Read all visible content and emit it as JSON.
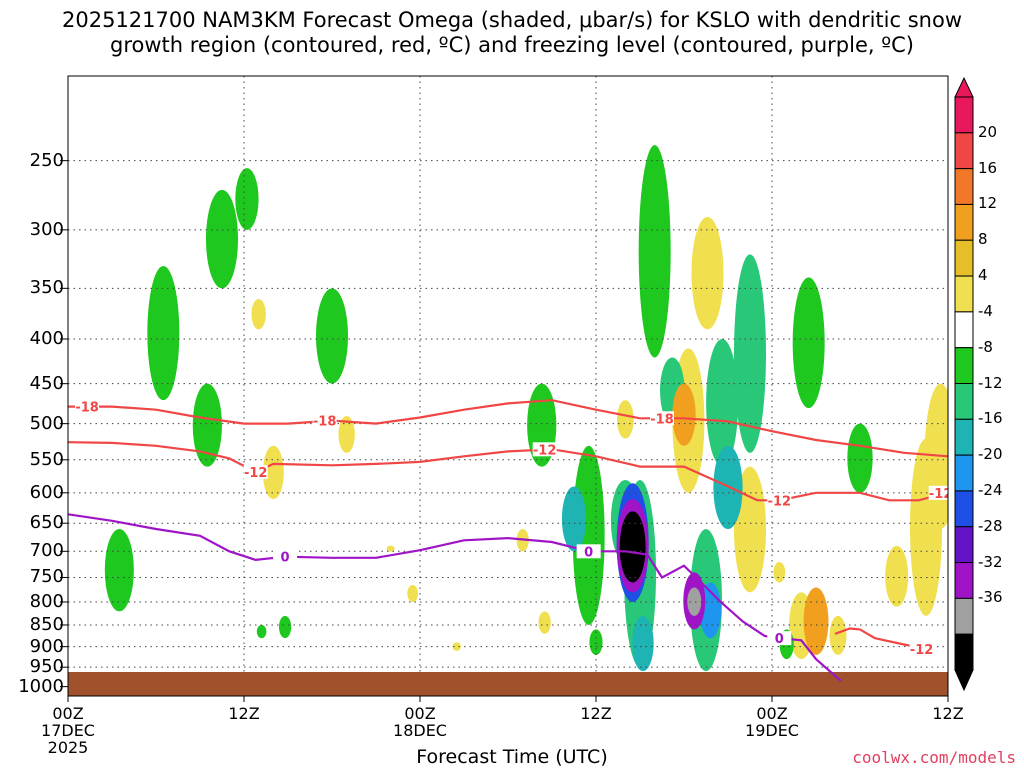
{
  "title_line1": "2025121700 NAM3KM Forecast Omega (shaded, μbar/s) for KSLO with dendritic snow",
  "title_line2": "growth region (contoured, red, ºC) and freezing level (contoured, purple, ºC)",
  "credit": "coolwx.com/models",
  "chart_data": {
    "type": "heatmap",
    "title": "2025121700 NAM3KM Forecast Omega (shaded, μbar/s) for KSLO with dendritic snow growth region (contoured, red, ºC) and freezing level (contoured, purple, ºC)",
    "xlabel": "Forecast Time (UTC)",
    "ylabel": "",
    "xlim": [
      0,
      60
    ],
    "ylim": [
      1025,
      200
    ],
    "y_scale": "log-pressure",
    "grid": true,
    "x_ticks": [
      {
        "hour": 0,
        "label": "00Z",
        "label2": "17DEC",
        "label3": "2025"
      },
      {
        "hour": 12,
        "label": "12Z",
        "label2": "",
        "label3": ""
      },
      {
        "hour": 24,
        "label": "00Z",
        "label2": "18DEC",
        "label3": ""
      },
      {
        "hour": 36,
        "label": "12Z",
        "label2": "",
        "label3": ""
      },
      {
        "hour": 48,
        "label": "00Z",
        "label2": "19DEC",
        "label3": ""
      },
      {
        "hour": 60,
        "label": "12Z",
        "label2": "",
        "label3": ""
      }
    ],
    "y_ticks": [
      250,
      300,
      350,
      400,
      450,
      500,
      550,
      600,
      650,
      700,
      750,
      800,
      850,
      900,
      950,
      1000
    ],
    "colorbar": {
      "labels": [
        "20",
        "16",
        "12",
        "8",
        "4",
        "-4",
        "-8",
        "-12",
        "-16",
        "-20",
        "-24",
        "-28",
        "-32",
        "-36"
      ],
      "colors": [
        "#e8185a",
        "#f04646",
        "#f07828",
        "#f0a01e",
        "#e6be28",
        "#f0e050",
        "#ffffff",
        "#1ec81e",
        "#28c878",
        "#1eb4b4",
        "#1e96f0",
        "#1e50e6",
        "#6414c8",
        "#a014c8",
        "#a0a0a0",
        "#000000"
      ]
    },
    "omega_regions": [
      {
        "hour": 6.5,
        "p_top": 330,
        "p_bot": 470,
        "value": -6
      },
      {
        "hour": 10.5,
        "p_top": 270,
        "p_bot": 350,
        "value": -6
      },
      {
        "hour": 12.2,
        "p_top": 255,
        "p_bot": 300,
        "value": -6
      },
      {
        "hour": 9.5,
        "p_top": 450,
        "p_bot": 560,
        "value": -6
      },
      {
        "hour": 3.5,
        "p_top": 660,
        "p_bot": 820,
        "value": -6
      },
      {
        "hour": 18,
        "p_top": 350,
        "p_bot": 450,
        "value": -6
      },
      {
        "hour": 13.2,
        "p_top": 850,
        "p_bot": 880,
        "value": -6
      },
      {
        "hour": 14.8,
        "p_top": 830,
        "p_bot": 880,
        "value": -6
      },
      {
        "hour": 32.3,
        "p_top": 450,
        "p_bot": 560,
        "value": -6
      },
      {
        "hour": 35.5,
        "p_top": 530,
        "p_bot": 850,
        "value": -6
      },
      {
        "hour": 34.5,
        "p_top": 590,
        "p_bot": 700,
        "value": -12
      },
      {
        "hour": 40,
        "p_top": 240,
        "p_bot": 420,
        "value": -6
      },
      {
        "hour": 41.2,
        "p_top": 420,
        "p_bot": 500,
        "value": -10
      },
      {
        "hour": 39,
        "p_top": 580,
        "p_bot": 950,
        "value": -8
      },
      {
        "hour": 39.2,
        "p_top": 830,
        "p_bot": 960,
        "value": -14
      },
      {
        "hour": 38,
        "p_top": 580,
        "p_bot": 720,
        "value": -10
      },
      {
        "hour": 43.5,
        "p_top": 660,
        "p_bot": 960,
        "value": -8
      },
      {
        "hour": 43.8,
        "p_top": 760,
        "p_bot": 880,
        "value": -16
      },
      {
        "hour": 44.6,
        "p_top": 400,
        "p_bot": 560,
        "value": -8
      },
      {
        "hour": 45,
        "p_top": 530,
        "p_bot": 660,
        "value": -12
      },
      {
        "hour": 46.5,
        "p_top": 320,
        "p_bot": 540,
        "value": -8
      },
      {
        "hour": 50.5,
        "p_top": 340,
        "p_bot": 480,
        "value": -6
      },
      {
        "hour": 54,
        "p_top": 500,
        "p_bot": 600,
        "value": -6
      },
      {
        "hour": 49,
        "p_top": 860,
        "p_bot": 930,
        "value": -6
      },
      {
        "hour": 36,
        "p_top": 860,
        "p_bot": 920,
        "value": -6
      },
      {
        "hour": 38.5,
        "p_top": 585,
        "p_bot": 800,
        "value": -22
      },
      {
        "hour": 38.5,
        "p_top": 610,
        "p_bot": 780,
        "value": -30
      },
      {
        "hour": 38.5,
        "p_top": 630,
        "p_bot": 760,
        "value": -38
      },
      {
        "hour": 42.7,
        "p_top": 740,
        "p_bot": 860,
        "value": -28
      },
      {
        "hour": 42.7,
        "p_top": 770,
        "p_bot": 830,
        "value": -32
      },
      {
        "hour": 14,
        "p_top": 530,
        "p_bot": 610,
        "value": 5
      },
      {
        "hour": 13,
        "p_top": 360,
        "p_bot": 390,
        "value": 5
      },
      {
        "hour": 19,
        "p_top": 490,
        "p_bot": 540,
        "value": 5
      },
      {
        "hour": 22,
        "p_top": 690,
        "p_bot": 700,
        "value": 5
      },
      {
        "hour": 23.5,
        "p_top": 765,
        "p_bot": 800,
        "value": 5
      },
      {
        "hour": 26.5,
        "p_top": 890,
        "p_bot": 910,
        "value": 5
      },
      {
        "hour": 31,
        "p_top": 660,
        "p_bot": 700,
        "value": 5
      },
      {
        "hour": 32.5,
        "p_top": 820,
        "p_bot": 870,
        "value": 5
      },
      {
        "hour": 38,
        "p_top": 470,
        "p_bot": 520,
        "value": 5
      },
      {
        "hour": 42.3,
        "p_top": 410,
        "p_bot": 600,
        "value": 6
      },
      {
        "hour": 42,
        "p_top": 450,
        "p_bot": 530,
        "value": 10
      },
      {
        "hour": 43.6,
        "p_top": 290,
        "p_bot": 390,
        "value": 5
      },
      {
        "hour": 46.5,
        "p_top": 560,
        "p_bot": 780,
        "value": 5
      },
      {
        "hour": 48.5,
        "p_top": 720,
        "p_bot": 760,
        "value": 5
      },
      {
        "hour": 50,
        "p_top": 780,
        "p_bot": 930,
        "value": 5
      },
      {
        "hour": 51,
        "p_top": 770,
        "p_bot": 920,
        "value": 10
      },
      {
        "hour": 52.5,
        "p_top": 830,
        "p_bot": 920,
        "value": 5
      },
      {
        "hour": 56.5,
        "p_top": 690,
        "p_bot": 810,
        "value": 5
      },
      {
        "hour": 58.5,
        "p_top": 520,
        "p_bot": 830,
        "value": 5
      },
      {
        "hour": 59.5,
        "p_top": 450,
        "p_bot": 660,
        "value": 5
      }
    ],
    "contours": [
      {
        "name": "dgz_minus18",
        "label": "-18",
        "color": "#f04646",
        "label_hours": [
          1.3,
          17.5,
          40.5
        ],
        "points": [
          [
            0,
            478
          ],
          [
            3,
            478
          ],
          [
            6,
            482
          ],
          [
            9,
            492
          ],
          [
            12,
            500
          ],
          [
            15,
            500
          ],
          [
            18,
            496
          ],
          [
            21,
            500
          ],
          [
            24,
            492
          ],
          [
            27,
            482
          ],
          [
            30,
            474
          ],
          [
            33,
            470
          ],
          [
            36,
            482
          ],
          [
            39,
            493
          ],
          [
            42,
            493
          ],
          [
            45,
            497
          ],
          [
            48,
            510
          ],
          [
            51,
            522
          ],
          [
            54,
            530
          ],
          [
            57,
            540
          ],
          [
            60,
            545
          ]
        ]
      },
      {
        "name": "dgz_minus12",
        "label": "-12",
        "color": "#f04646",
        "label_hours": [
          12.8,
          32.5,
          48.5,
          59.5
        ],
        "points": [
          [
            0,
            525
          ],
          [
            3,
            526
          ],
          [
            6,
            530
          ],
          [
            9,
            538
          ],
          [
            11,
            548
          ],
          [
            12.8,
            568
          ],
          [
            14,
            556
          ],
          [
            18,
            558
          ],
          [
            21,
            556
          ],
          [
            24,
            553
          ],
          [
            27,
            545
          ],
          [
            30,
            538
          ],
          [
            33,
            535
          ],
          [
            36,
            545
          ],
          [
            39,
            560
          ],
          [
            42,
            560
          ],
          [
            45,
            590
          ],
          [
            47,
            612
          ],
          [
            48.5,
            612
          ],
          [
            51,
            600
          ],
          [
            54,
            600
          ],
          [
            56,
            612
          ],
          [
            58,
            612
          ],
          [
            60,
            600
          ]
        ]
      },
      {
        "name": "dgz_minus12_lower",
        "label": "-12",
        "color": "#f04646",
        "label_hours": [
          58.2
        ],
        "points": [
          [
            52.3,
            870
          ],
          [
            53.3,
            858
          ],
          [
            54,
            860
          ],
          [
            55,
            880
          ],
          [
            57,
            895
          ],
          [
            58.5,
            905
          ]
        ]
      },
      {
        "name": "freezing_level",
        "label": "0",
        "color": "#a014c8",
        "label_hours": [
          14.8,
          35.5,
          48.5
        ],
        "points": [
          [
            0,
            635
          ],
          [
            3,
            646
          ],
          [
            6,
            660
          ],
          [
            9,
            672
          ],
          [
            11,
            700
          ],
          [
            12.8,
            716
          ],
          [
            14.8,
            710
          ],
          [
            18,
            712
          ],
          [
            21,
            712
          ],
          [
            24,
            698
          ],
          [
            27,
            680
          ],
          [
            30,
            676
          ],
          [
            33,
            683
          ],
          [
            35.5,
            700
          ],
          [
            38,
            700
          ],
          [
            39.5,
            706
          ],
          [
            40.5,
            750
          ],
          [
            42,
            727
          ],
          [
            43,
            755
          ],
          [
            44.5,
            800
          ],
          [
            46,
            842
          ],
          [
            47.5,
            875
          ],
          [
            48.5,
            880
          ],
          [
            50,
            885
          ],
          [
            51,
            930
          ],
          [
            52.7,
            985
          ]
        ]
      }
    ]
  }
}
